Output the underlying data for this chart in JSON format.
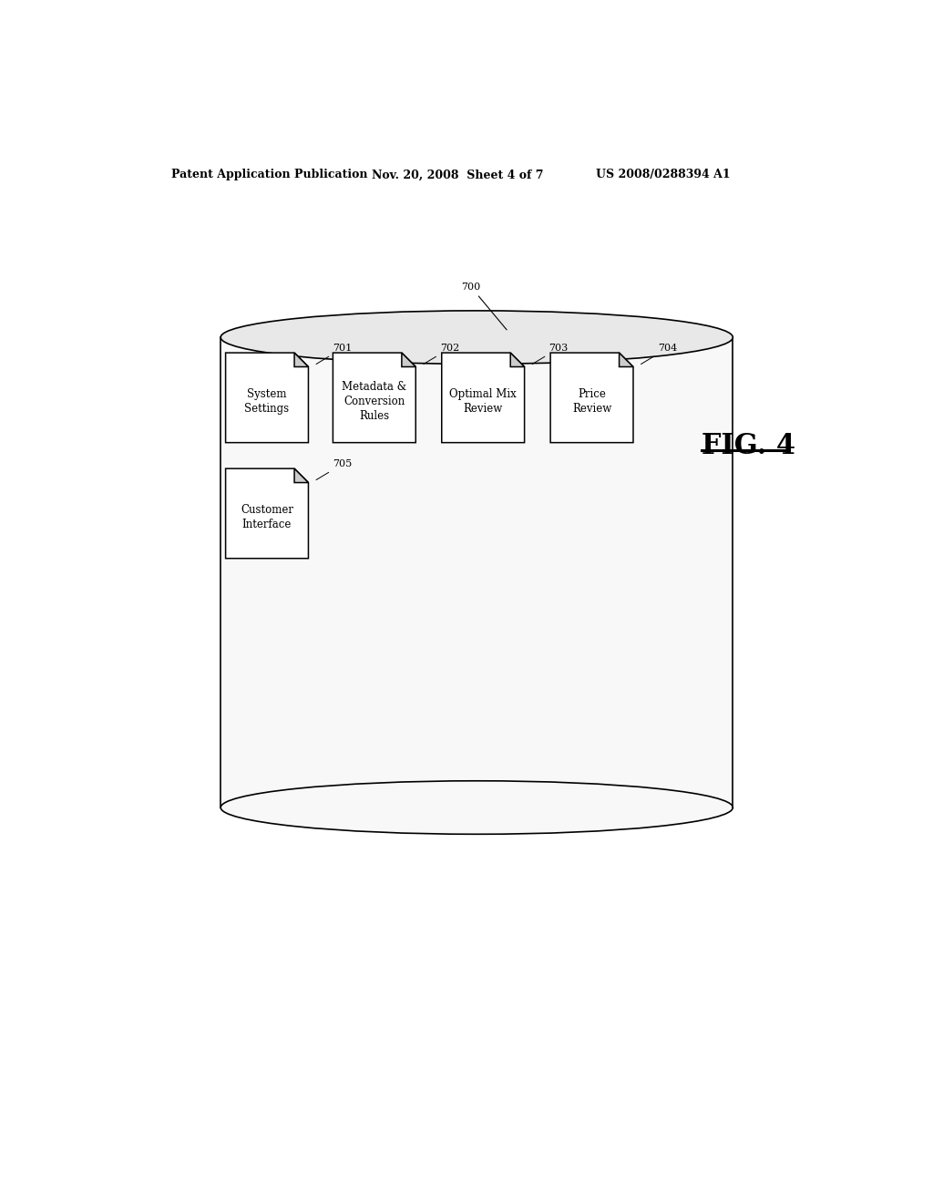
{
  "title": "FIG. 4",
  "header_left": "Patent Application Publication",
  "header_mid": "Nov. 20, 2008  Sheet 4 of 7",
  "header_right": "US 2008/0288394 A1",
  "cylinder_label": "700",
  "documents": [
    {
      "label": "System\nSettings",
      "ref": "701",
      "row": 0,
      "col": 0
    },
    {
      "label": "Metadata &\nConversion\nRules",
      "ref": "702",
      "row": 0,
      "col": 1
    },
    {
      "label": "Optimal Mix\nReview",
      "ref": "703",
      "row": 0,
      "col": 2
    },
    {
      "label": "Price\nReview",
      "ref": "704",
      "row": 0,
      "col": 3
    },
    {
      "label": "Customer\nInterface",
      "ref": "705",
      "row": 1,
      "col": 0
    }
  ],
  "bg_color": "#ffffff",
  "line_color": "#000000",
  "cylinder_fill": "#f8f8f8",
  "cylinder_top_fill": "#e8e8e8",
  "doc_fill": "#ffffff",
  "doc_fold_fill": "#cccccc"
}
